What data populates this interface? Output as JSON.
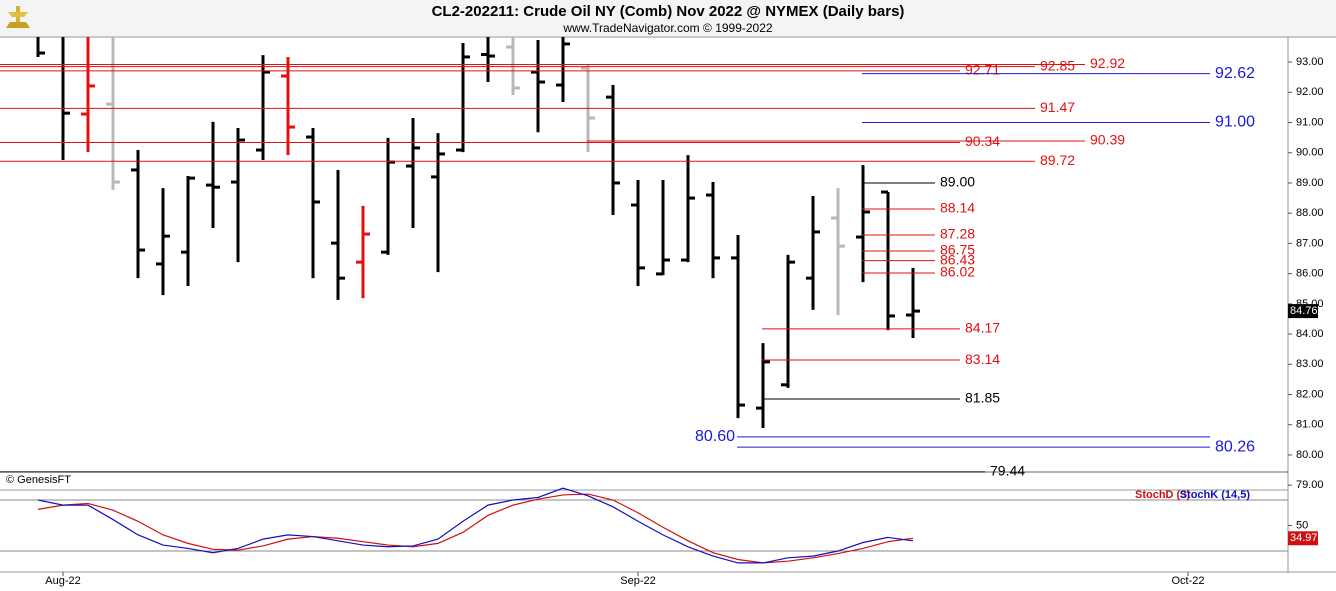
{
  "chart_data": [
    {
      "type": "ohlc",
      "title": "CL2-202211:  Crude Oil NY (Comb) Nov 2022 @ NYMEX  (Daily bars)",
      "subtitle": "www.TradeNavigator.com © 1999-2022",
      "source": "© GenesisFT",
      "open": [
        94.2,
        94.0,
        91.28,
        91.61,
        89.43,
        86.32,
        86.71,
        88.93,
        89.03,
        90.09,
        92.54,
        90.52,
        87.01,
        86.38,
        86.71,
        89.56,
        89.2,
        90.09,
        93.25,
        93.5,
        92.67,
        92.24,
        92.8,
        91.84,
        88.27,
        85.99,
        86.45,
        88.6,
        86.52,
        81.55,
        82.32,
        85.85,
        87.84,
        87.21,
        88.7,
        84.63
      ],
      "high": [
        94.5,
        94.5,
        94.5,
        94.5,
        90.09,
        88.83,
        89.23,
        91.02,
        90.82,
        93.23,
        93.17,
        90.82,
        89.43,
        88.24,
        90.49,
        91.15,
        90.65,
        93.63,
        94.5,
        94.5,
        93.73,
        94.5,
        92.9,
        92.24,
        89.1,
        89.1,
        89.92,
        89.03,
        87.28,
        83.7,
        86.62,
        88.57,
        88.83,
        89.59,
        88.7,
        86.19
      ],
      "low": [
        93.17,
        89.76,
        90.02,
        88.77,
        85.85,
        85.29,
        85.59,
        87.51,
        86.38,
        89.76,
        89.92,
        85.85,
        85.13,
        85.19,
        86.62,
        87.51,
        86.05,
        90.02,
        92.34,
        91.91,
        90.68,
        91.68,
        90.02,
        87.94,
        85.59,
        85.95,
        86.38,
        85.85,
        81.22,
        80.89,
        82.22,
        84.8,
        84.63,
        85.72,
        84.13,
        83.87
      ],
      "close": [
        93.3,
        91.31,
        92.21,
        89.03,
        86.78,
        87.24,
        89.16,
        88.86,
        90.42,
        92.67,
        90.85,
        88.37,
        85.85,
        87.31,
        89.69,
        90.16,
        89.96,
        93.17,
        93.2,
        92.14,
        92.34,
        93.6,
        91.15,
        89.0,
        86.19,
        86.45,
        88.5,
        86.52,
        81.65,
        83.08,
        86.38,
        87.38,
        86.91,
        88.04,
        84.6,
        84.76
      ],
      "bar_colors": [
        "#000000",
        "#000000",
        "#e01010",
        "#b8b8b8",
        "#000000",
        "#000000",
        "#000000",
        "#000000",
        "#000000",
        "#000000",
        "#e01010",
        "#000000",
        "#000000",
        "#e01010",
        "#000000",
        "#000000",
        "#000000",
        "#000000",
        "#000000",
        "#b8b8b8",
        "#000000",
        "#000000",
        "#b8b8b8",
        "#000000",
        "#000000",
        "#000000",
        "#000000",
        "#000000",
        "#000000",
        "#000000",
        "#000000",
        "#000000",
        "#b8b8b8",
        "#000000",
        "#000000",
        "#000000"
      ],
      "ylim": [
        78.84,
        93.83
      ],
      "yticks": [
        {
          "value": 79,
          "label": "79.00"
        },
        {
          "value": 80,
          "label": "80.00"
        },
        {
          "value": 81,
          "label": "81.00"
        },
        {
          "value": 82,
          "label": "82.00"
        },
        {
          "value": 83,
          "label": "83.00"
        },
        {
          "value": 84,
          "label": "84.00"
        },
        {
          "value": 85,
          "label": "85.00"
        },
        {
          "value": 86,
          "label": "86.00"
        },
        {
          "value": 87,
          "label": "87.00"
        },
        {
          "value": 88,
          "label": "88.00"
        },
        {
          "value": 89,
          "label": "89.00"
        },
        {
          "value": 90,
          "label": "90.00"
        },
        {
          "value": 91,
          "label": "91.00"
        },
        {
          "value": 92,
          "label": "92.00"
        },
        {
          "value": 93,
          "label": "93.00"
        }
      ],
      "xlim": [
        -1.52,
        50
      ],
      "xticks": [
        {
          "value": 1,
          "label": "Aug-22"
        },
        {
          "value": 24,
          "label": "Sep-22"
        },
        {
          "value": 46,
          "label": "Oct-22"
        }
      ],
      "levels": [
        {
          "value": 92.92,
          "color": "#e01010"
        },
        {
          "value": 92.85,
          "color": "#e01010"
        },
        {
          "value": 92.71,
          "color": "#e01010"
        },
        {
          "value": 92.62,
          "color": "#1a1ad8"
        },
        {
          "value": 91.47,
          "color": "#e01010"
        },
        {
          "value": 91,
          "label": "91.00",
          "color": "#1a1ad8"
        },
        {
          "value": 90.39,
          "color": "#e01010"
        },
        {
          "value": 90.34,
          "color": "#e01010"
        },
        {
          "value": 89.72,
          "color": "#e01010"
        },
        {
          "value": 89,
          "label": "89.00",
          "color": "#000000"
        },
        {
          "value": 88.14,
          "color": "#e01010"
        },
        {
          "value": 87.28,
          "color": "#e01010"
        },
        {
          "value": 86.75,
          "color": "#e01010"
        },
        {
          "value": 86.43,
          "color": "#e01010"
        },
        {
          "value": 86.02,
          "color": "#e01010"
        },
        {
          "value": 84.17,
          "color": "#e01010"
        },
        {
          "value": 83.14,
          "color": "#e01010"
        },
        {
          "value": 81.85,
          "color": "#000000"
        },
        {
          "value": 80.6,
          "label": "80.60",
          "color": "#1a1ad8"
        },
        {
          "value": 80.26,
          "color": "#1a1ad8"
        },
        {
          "value": 79.44,
          "color": "#000000"
        }
      ]
    },
    {
      "type": "line",
      "series": [
        {
          "name": "StochD (3)",
          "color": "#d01010",
          "values": [
            69,
            74,
            76,
            68,
            55,
            39,
            29,
            22,
            21,
            26,
            34,
            37,
            35,
            31,
            27,
            25,
            29,
            42,
            62,
            74,
            81,
            86,
            87,
            80,
            65,
            48,
            32,
            18,
            10,
            6,
            8,
            12,
            17,
            23,
            31,
            34.97
          ]
        },
        {
          "name": "StochK (14,5)",
          "color": "#1010c0",
          "values": [
            80,
            74,
            74,
            57,
            39,
            27,
            23,
            18,
            23,
            34,
            39,
            37,
            32,
            27,
            25,
            26,
            34,
            55,
            74,
            80,
            83,
            94,
            85,
            72,
            55,
            39,
            25,
            14,
            6,
            6,
            12,
            14,
            20,
            30,
            36,
            32
          ]
        }
      ],
      "ylim": [
        -4.7,
        91.8
      ],
      "yticks": [
        50
      ],
      "hlines": [
        80,
        20
      ]
    }
  ]
}
